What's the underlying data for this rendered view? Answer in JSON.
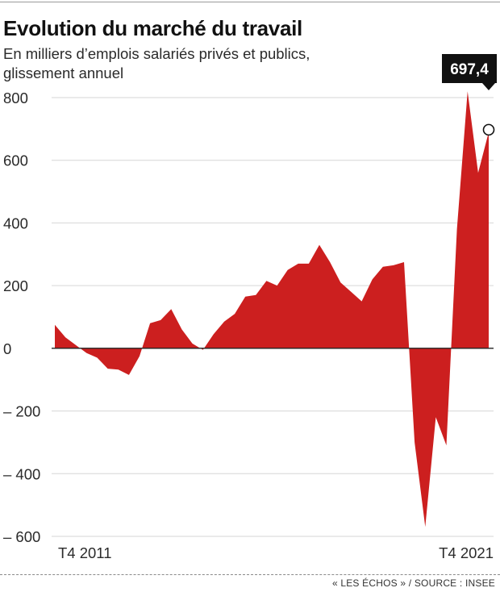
{
  "title": "Evolution du marché du travail",
  "subtitle": "En milliers d’emplois salariés privés et publics, glissement annuel",
  "source": "« LES ÉCHOS » / SOURCE : INSEE",
  "colors": {
    "area": "#cc1f1f",
    "grid": "#d6d6d6",
    "callout": "#111111"
  },
  "chart_data": {
    "type": "area",
    "title": "Evolution du marché du travail",
    "subtitle": "En milliers d’emplois salariés privés et publics, glissement annuel",
    "xlabel": "",
    "ylabel": "",
    "ylim": [
      -600,
      800
    ],
    "yticks": [
      800,
      600,
      400,
      200,
      0,
      -200,
      -400,
      -600
    ],
    "ytick_labels": [
      "800",
      "600",
      "400",
      "200",
      "0",
      "– 200",
      "– 400",
      "– 600"
    ],
    "x_range": [
      "T4 2011",
      "T4 2021"
    ],
    "x_tick_labels": [
      "T4 2011",
      "T4 2021"
    ],
    "grid": true,
    "callout": {
      "label": "697,4",
      "value": 697.4
    },
    "series": [
      {
        "values": [
          75,
          35,
          10,
          -15,
          -30,
          -65,
          -68,
          -85,
          -25,
          80,
          90,
          125,
          60,
          15,
          -5,
          45,
          85,
          110,
          165,
          170,
          215,
          200,
          250,
          270,
          270,
          330,
          275,
          210,
          180,
          150,
          220,
          260,
          265,
          275,
          -300,
          -570,
          -220,
          -310,
          380,
          820,
          560,
          690
        ]
      }
    ]
  }
}
